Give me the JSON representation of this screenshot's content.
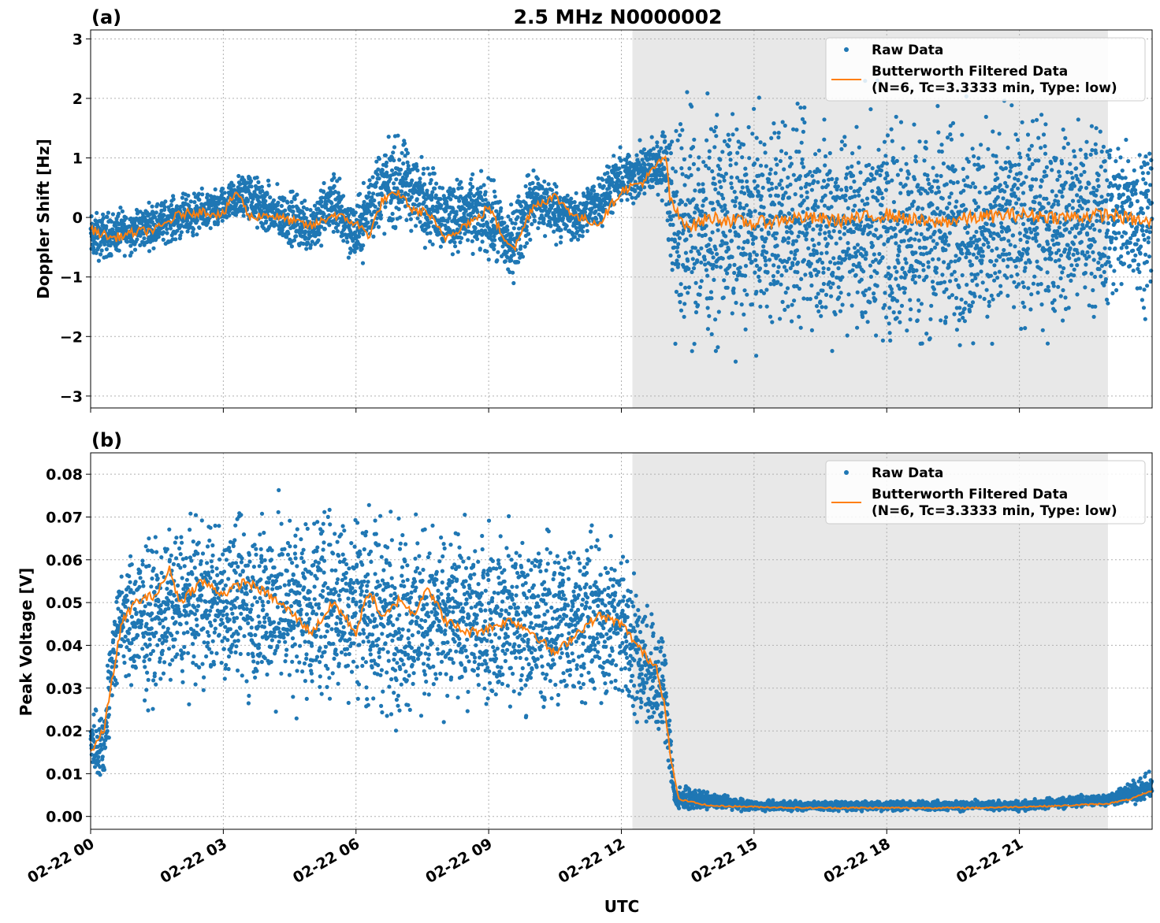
{
  "figure": {
    "title": "2.5 MHz N0000002",
    "xlabel": "UTC",
    "x_tick_labels": [
      "02-22 00",
      "02-22 03",
      "02-22 06",
      "02-22 09",
      "02-22 12",
      "02-22 15",
      "02-22 18",
      "02-22 21"
    ],
    "shaded_band_hours": [
      12.25,
      23.0
    ],
    "colors": {
      "raw": "#1f77b4",
      "filtered": "#ff7f0e",
      "shade": "#e8e8e8",
      "grid": "#b0b0b0"
    }
  },
  "chart_data": [
    {
      "type": "scatter",
      "panel_label": "(a)",
      "ylabel": "Doppler Shift [Hz]",
      "xlim_hours": [
        0,
        24
      ],
      "ylim": [
        -3.2,
        3.15
      ],
      "y_ticks": [
        3,
        2,
        1,
        0,
        -1,
        -2,
        -3
      ],
      "y_tick_labels": [
        "3",
        "2",
        "1",
        "0",
        "−1",
        "−2",
        "−3"
      ],
      "grid": true,
      "legend": "top-right",
      "legend_entries": {
        "raw": "Raw Data",
        "filtered_line1": "Butterworth Filtered Data",
        "filtered_line2": "(N=6, Tc=3.3333 min, Type: low)"
      },
      "series": [
        {
          "name": "Raw Data",
          "x_hours": [
            0,
            1,
            2,
            3,
            3.5,
            4,
            5,
            5.5,
            6,
            6.5,
            7,
            8,
            9,
            9.5,
            10,
            11,
            12,
            12.5,
            13,
            13.2,
            15,
            18,
            21,
            24
          ],
          "y_range": [
            [
              -0.9,
              0.2
            ],
            [
              -0.7,
              0.3
            ],
            [
              -0.5,
              0.5
            ],
            [
              -0.3,
              0.6
            ],
            [
              -0.2,
              1.0
            ],
            [
              -0.5,
              0.7
            ],
            [
              -0.8,
              0.5
            ],
            [
              -0.5,
              1.0
            ],
            [
              -1.0,
              0.4
            ],
            [
              -0.6,
              1.5
            ],
            [
              -0.4,
              1.6
            ],
            [
              -0.8,
              0.9
            ],
            [
              -0.9,
              0.9
            ],
            [
              -1.4,
              0.4
            ],
            [
              -0.5,
              1.1
            ],
            [
              -0.6,
              0.5
            ],
            [
              0.0,
              1.3
            ],
            [
              0.1,
              1.4
            ],
            [
              0.2,
              1.7
            ],
            [
              -2.8,
              2.5
            ],
            [
              -2.5,
              2.3
            ],
            [
              -2.8,
              2.4
            ],
            [
              -2.5,
              2.2
            ],
            [
              -1.8,
              1.9
            ]
          ]
        },
        {
          "name": "Butterworth Filtered Data (N=6, Tc=3.3333 min, Type: low)",
          "x_hours": [
            0,
            0.5,
            1,
            1.5,
            2,
            2.5,
            3,
            3.3,
            3.6,
            4,
            4.5,
            5,
            5.5,
            6,
            6.3,
            6.6,
            7,
            7.3,
            7.6,
            8,
            8.5,
            8.8,
            9,
            9.3,
            9.6,
            10,
            10.5,
            11,
            11.5,
            12,
            12.5,
            13,
            13.1,
            13.3,
            13.6,
            14,
            15,
            16,
            17,
            18,
            19,
            20,
            21,
            22,
            23,
            24
          ],
          "values": [
            -0.2,
            -0.35,
            -0.25,
            -0.2,
            0.05,
            0.1,
            0.05,
            0.45,
            0.0,
            0.05,
            -0.05,
            -0.15,
            0.05,
            -0.1,
            -0.3,
            0.3,
            0.4,
            0.1,
            0.1,
            -0.35,
            -0.1,
            0.0,
            0.2,
            -0.3,
            -0.5,
            0.2,
            0.35,
            0.0,
            -0.1,
            0.45,
            0.6,
            1.05,
            0.3,
            0.0,
            -0.15,
            0.0,
            -0.1,
            0.0,
            -0.05,
            0.05,
            -0.1,
            0.0,
            0.05,
            0.0,
            0.05,
            -0.1
          ]
        }
      ]
    },
    {
      "type": "scatter",
      "panel_label": "(b)",
      "ylabel": "Peak Voltage [V]",
      "xlim_hours": [
        0,
        24
      ],
      "ylim": [
        -0.003,
        0.085
      ],
      "y_ticks": [
        0.08,
        0.07,
        0.06,
        0.05,
        0.04,
        0.03,
        0.02,
        0.01,
        0.0
      ],
      "y_tick_labels": [
        "0.08",
        "0.07",
        "0.06",
        "0.05",
        "0.04",
        "0.03",
        "0.02",
        "0.01",
        "0.00"
      ],
      "grid": true,
      "legend": "top-right",
      "legend_entries": {
        "raw": "Raw Data",
        "filtered_line1": "Butterworth Filtered Data",
        "filtered_line2": "(N=6, Tc=3.3333 min, Type: low)"
      },
      "series": [
        {
          "name": "Raw Data",
          "x_hours": [
            0,
            0.3,
            0.5,
            0.7,
            1,
            2,
            3,
            4,
            5,
            6,
            7,
            8,
            9,
            10,
            11,
            12,
            12.5,
            13,
            13.2,
            15,
            18,
            21,
            23,
            23.7,
            24
          ],
          "y_range": [
            [
              0.005,
              0.03
            ],
            [
              0.005,
              0.028
            ],
            [
              0.02,
              0.055
            ],
            [
              0.03,
              0.062
            ],
            [
              0.02,
              0.07
            ],
            [
              0.025,
              0.074
            ],
            [
              0.025,
              0.076
            ],
            [
              0.02,
              0.08
            ],
            [
              0.02,
              0.079
            ],
            [
              0.02,
              0.081
            ],
            [
              0.015,
              0.077
            ],
            [
              0.02,
              0.072
            ],
            [
              0.02,
              0.074
            ],
            [
              0.018,
              0.072
            ],
            [
              0.02,
              0.074
            ],
            [
              0.02,
              0.07
            ],
            [
              0.015,
              0.058
            ],
            [
              0.01,
              0.047
            ],
            [
              0.001,
              0.008
            ],
            [
              0.001,
              0.004
            ],
            [
              0.001,
              0.004
            ],
            [
              0.001,
              0.004
            ],
            [
              0.002,
              0.006
            ],
            [
              0.002,
              0.01
            ],
            [
              0.003,
              0.011
            ]
          ]
        },
        {
          "name": "Butterworth Filtered Data (N=6, Tc=3.3333 min, Type: low)",
          "x_hours": [
            0,
            0.3,
            0.5,
            0.7,
            1,
            1.5,
            1.8,
            2,
            2.5,
            3,
            3.5,
            4,
            4.5,
            5,
            5.5,
            6,
            6.3,
            6.6,
            7,
            7.3,
            7.6,
            8,
            8.5,
            9,
            9.5,
            10,
            10.5,
            11,
            11.5,
            12,
            12.5,
            12.8,
            13,
            13.1,
            13.3,
            14,
            16,
            18,
            20,
            22,
            23,
            23.5,
            24
          ],
          "values": [
            0.015,
            0.02,
            0.033,
            0.045,
            0.05,
            0.052,
            0.058,
            0.05,
            0.055,
            0.052,
            0.055,
            0.052,
            0.048,
            0.043,
            0.05,
            0.043,
            0.053,
            0.046,
            0.051,
            0.047,
            0.054,
            0.046,
            0.043,
            0.044,
            0.046,
            0.043,
            0.038,
            0.043,
            0.047,
            0.045,
            0.038,
            0.035,
            0.025,
            0.014,
            0.004,
            0.0025,
            0.002,
            0.002,
            0.002,
            0.0025,
            0.003,
            0.004,
            0.006
          ]
        }
      ]
    }
  ]
}
